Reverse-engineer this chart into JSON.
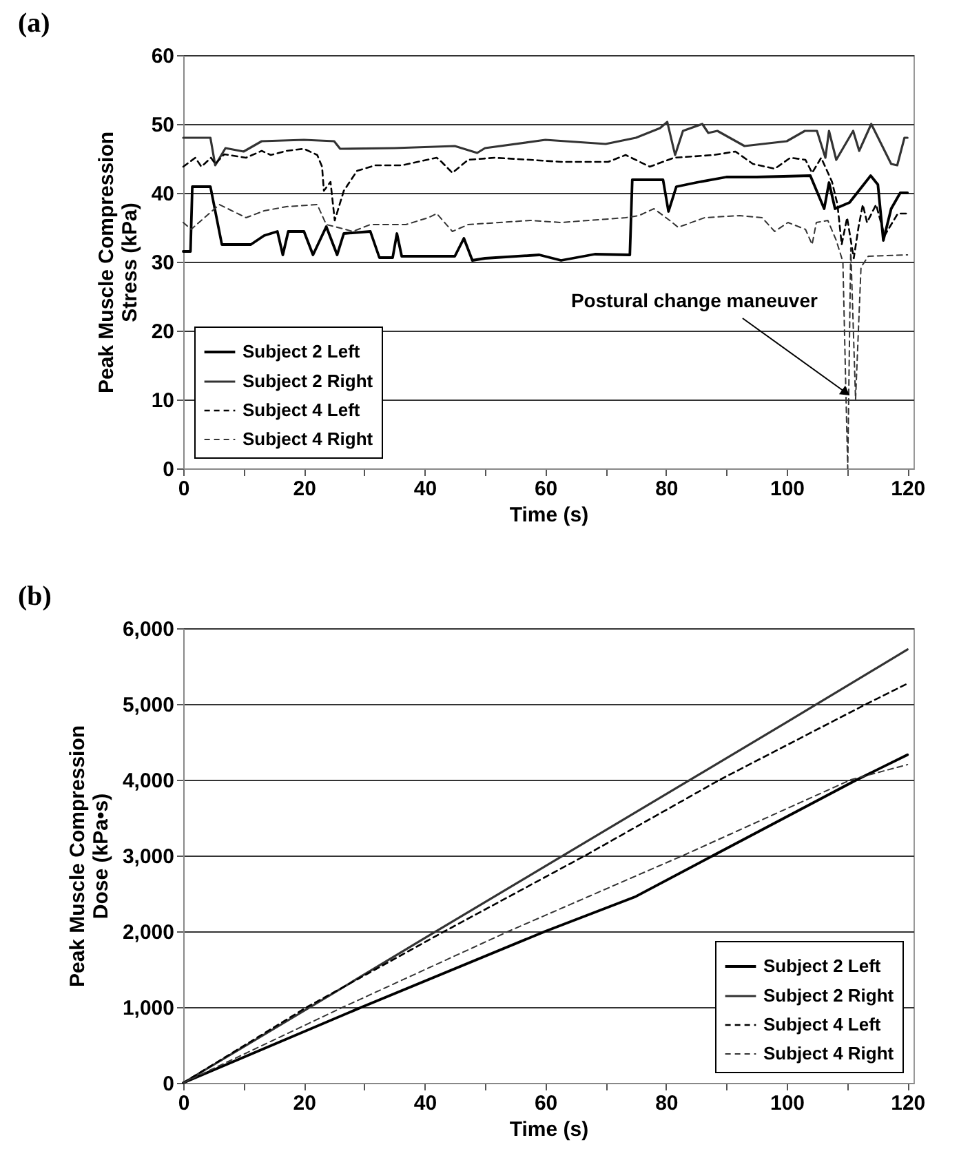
{
  "chart_data": [
    {
      "type": "line",
      "title": "(a)",
      "xlabel": "Time (s)",
      "ylabel": "Peak Muscle Compression\nStress (kPa)",
      "xlim": [
        0,
        121
      ],
      "ylim": [
        0,
        60
      ],
      "xticks": [
        0,
        {
          "value": 10,
          "label": null
        },
        20,
        {
          "value": 30,
          "label": null
        },
        40,
        {
          "value": 50,
          "label": null
        },
        60,
        {
          "value": 70,
          "label": null
        },
        80,
        {
          "value": 90,
          "label": null
        },
        100,
        {
          "value": 110,
          "label": null
        },
        120
      ],
      "yticks": [
        0,
        10,
        20,
        30,
        40,
        50,
        60
      ],
      "grid": "y",
      "legend": "bottom left",
      "marker": "none",
      "annotations": [
        {
          "text": "Postural change maneuver",
          "x": 109.8,
          "y": 11
        }
      ],
      "series": [
        {
          "name": "Subject 2 Left",
          "color": "#000000",
          "line_style": "solid",
          "x": [
            0,
            1.2,
            1.5,
            4.5,
            6.4,
            11.2,
            13.4,
            15.6,
            16.5,
            17.4,
            20,
            21.5,
            23.7,
            25.5,
            26.6,
            31,
            32.5,
            34.7,
            35.4,
            36.2,
            45,
            46.5,
            47.9,
            50,
            59,
            62.6,
            68.2,
            74,
            74.4,
            79.5,
            80.4,
            81.7,
            85,
            90,
            95,
            103.9,
            106.2,
            107,
            108,
            110.4,
            113.9,
            115.1,
            116,
            117.3,
            118.8,
            120
          ],
          "values": [
            31.5,
            31.5,
            40.9,
            40.9,
            32.5,
            32.5,
            33.8,
            34.4,
            31,
            34.4,
            34.4,
            31,
            35.1,
            31,
            34.1,
            34.4,
            30.6,
            30.6,
            34.1,
            30.8,
            30.8,
            33.4,
            30.2,
            30.5,
            31,
            30.2,
            31.1,
            31,
            41.9,
            41.9,
            37.3,
            40.9,
            41.5,
            42.3,
            42.3,
            42.5,
            37.7,
            41.5,
            37.7,
            38.6,
            42.5,
            41.2,
            33.1,
            37.7,
            40,
            40
          ]
        },
        {
          "name": "Subject 2 Right",
          "color": "#333333",
          "line_style": "solid",
          "x": [
            0,
            4.5,
            5.3,
            7,
            10,
            13,
            20,
            25,
            26,
            35,
            45,
            48.7,
            50,
            60,
            70,
            75,
            79,
            80.2,
            81.5,
            82.8,
            86,
            87,
            88.5,
            93,
            100,
            103,
            105,
            106.4,
            107,
            108.2,
            111,
            112,
            114,
            117.3,
            118.3,
            119.5,
            120
          ],
          "values": [
            48,
            48,
            44,
            46.5,
            46,
            47.5,
            47.7,
            47.5,
            46.4,
            46.5,
            46.8,
            45.8,
            46.5,
            47.7,
            47.1,
            48,
            49.4,
            50.3,
            45.5,
            49,
            50,
            48.7,
            49,
            46.8,
            47.5,
            49,
            49,
            45.1,
            49,
            44.8,
            49,
            46.1,
            50,
            44.2,
            44,
            48,
            48
          ]
        },
        {
          "name": "Subject 4 Left",
          "color": "#000000",
          "line_style": "dashed",
          "x": [
            0,
            2,
            3,
            4.6,
            5.3,
            6.8,
            10.4,
            13,
            14.5,
            17.1,
            20,
            22.2,
            23,
            23.3,
            24.4,
            25.1,
            26.6,
            28.8,
            31.8,
            36.2,
            42,
            42.8,
            44.6,
            47.2,
            51.6,
            57.5,
            62.6,
            70.4,
            73.3,
            77.3,
            81.3,
            87.9,
            91.5,
            94.4,
            98,
            100.6,
            103.1,
            104.2,
            105.7,
            107.5,
            108.4,
            109.1,
            110,
            111.1,
            111.9,
            112.6,
            113.3,
            114.8,
            116.2,
            118.4,
            120
          ],
          "values": [
            43.8,
            45.1,
            43.8,
            45.1,
            44.2,
            45.6,
            45.1,
            46.1,
            45.5,
            46.1,
            46.4,
            45.5,
            43.8,
            40.3,
            41.6,
            36,
            40.3,
            43.2,
            44,
            44,
            45.1,
            44.5,
            42.9,
            44.8,
            45.1,
            44.8,
            44.5,
            44.5,
            45.5,
            43.8,
            45.1,
            45.5,
            46,
            44.2,
            43.5,
            45.1,
            44.8,
            42.9,
            45.1,
            41.6,
            38.3,
            32.5,
            36.4,
            30.5,
            35.1,
            38.3,
            35.7,
            38.3,
            33.8,
            37,
            37
          ]
        },
        {
          "name": "Subject 4 Right",
          "color": "#333333",
          "line_style": "dashed",
          "x": [
            0,
            1.3,
            3,
            6,
            10.4,
            13.4,
            17.1,
            22.2,
            23.7,
            25.1,
            28.1,
            31,
            36.9,
            40.6,
            42,
            44.6,
            47.2,
            57.5,
            62.6,
            73.3,
            75.5,
            78,
            80.6,
            82,
            86.4,
            92.2,
            95.9,
            98,
            100.2,
            103.1,
            104.2,
            104.9,
            106.8,
            108.2,
            109.3,
            109.8,
            110.1,
            110.6,
            111.4,
            112.3,
            113.5,
            120
          ],
          "values": [
            35.7,
            34.7,
            36,
            38.3,
            36.4,
            37.4,
            38,
            38.3,
            35.4,
            35.1,
            34.4,
            35.4,
            35.4,
            36.4,
            37,
            34.4,
            35.4,
            36,
            35.7,
            36.4,
            36.7,
            37.7,
            36,
            35,
            36.4,
            36.7,
            36.4,
            34.4,
            35.7,
            34.7,
            32.5,
            35.7,
            36,
            33.1,
            30,
            11,
            0,
            32,
            10,
            29.2,
            30.8,
            31
          ]
        }
      ]
    },
    {
      "type": "line",
      "title": "(b)",
      "xlabel": "Time (s)",
      "ylabel": "Peak Muscle Compression\nDose (kPa•s)",
      "xlim": [
        0,
        121
      ],
      "ylim": [
        0,
        6000
      ],
      "xticks": [
        0,
        {
          "value": 10,
          "label": null
        },
        20,
        {
          "value": 30,
          "label": null
        },
        40,
        {
          "value": 50,
          "label": null
        },
        60,
        {
          "value": 70,
          "label": null
        },
        80,
        {
          "value": 90,
          "label": null
        },
        100,
        {
          "value": 110,
          "label": null
        },
        120
      ],
      "yticks": [
        0,
        {
          "value": 1000,
          "label": "1,000"
        },
        {
          "value": 2000,
          "label": "2,000"
        },
        {
          "value": 3000,
          "label": "3,000"
        },
        {
          "value": 4000,
          "label": "4,000"
        },
        {
          "value": 5000,
          "label": "5,000"
        },
        {
          "value": 6000,
          "label": "6,000"
        }
      ],
      "grid": "y",
      "legend": "bottom right",
      "marker": "none",
      "series": [
        {
          "name": "Subject 2 Left",
          "color": "#000000",
          "line_style": "solid",
          "x": [
            0,
            29.6,
            60,
            75,
            87.8,
            111.6,
            120
          ],
          "values": [
            0,
            1000,
            2000,
            2460,
            3000,
            4000,
            4330
          ]
        },
        {
          "name": "Subject 2 Right",
          "color": "#333333",
          "line_style": "solid",
          "x": [
            0,
            20,
            40,
            60,
            80,
            100,
            120
          ],
          "values": [
            0,
            950,
            1910,
            2860,
            3810,
            4760,
            5720
          ]
        },
        {
          "name": "Subject 4 Left",
          "color": "#000000",
          "line_style": "dashed",
          "x": [
            0,
            20.5,
            43.3,
            66.6,
            88.9,
            113.2,
            120
          ],
          "values": [
            0,
            1000,
            2000,
            3000,
            4000,
            5000,
            5270
          ]
        },
        {
          "name": "Subject 4 Right",
          "color": "#333333",
          "line_style": "dashed",
          "x": [
            0,
            26.5,
            53.9,
            77,
            82.8,
            110.6,
            120
          ],
          "values": [
            0,
            1000,
            2000,
            2800,
            3000,
            4000,
            4200
          ]
        }
      ]
    }
  ]
}
